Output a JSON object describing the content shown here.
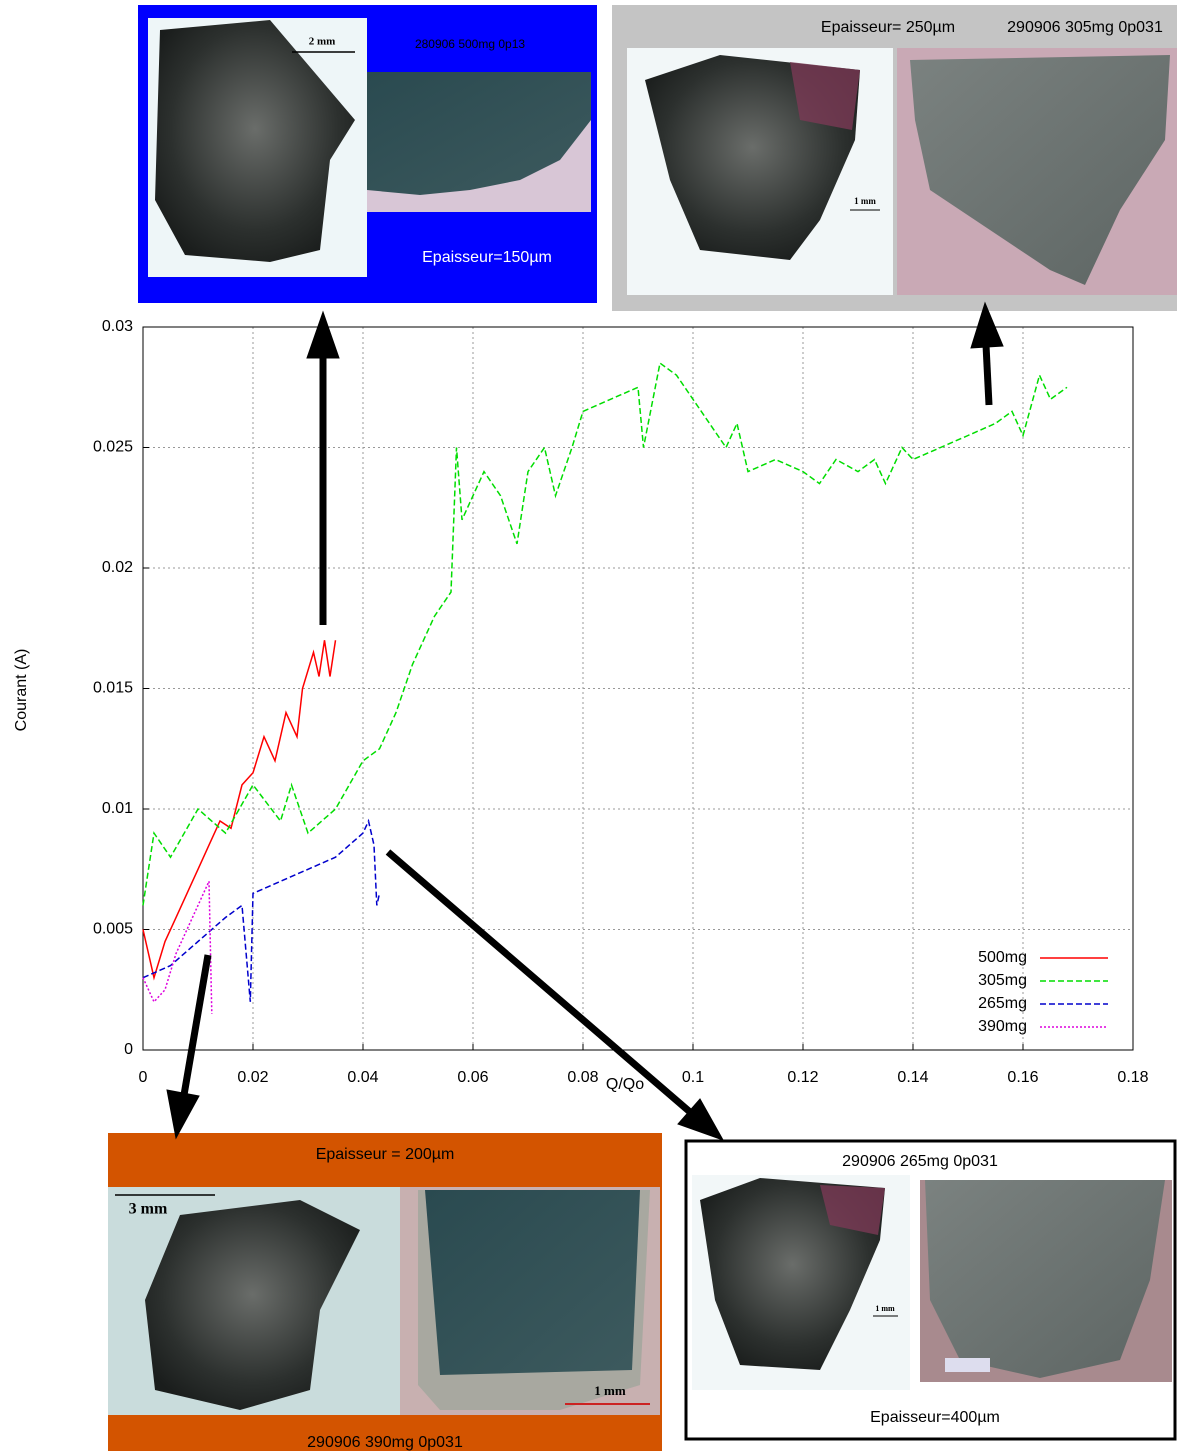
{
  "chart_data": {
    "type": "line",
    "x_label": "Q/Qo",
    "y_label": "Courant (A)",
    "xlim": [
      0,
      0.18
    ],
    "xticks": [
      0,
      0.02,
      0.04,
      0.06,
      0.08,
      0.1,
      0.12,
      0.14,
      0.16,
      0.18
    ],
    "ylim": [
      0,
      0.03
    ],
    "yticks": [
      0,
      0.005,
      0.01,
      0.015,
      0.02,
      0.025,
      0.03
    ],
    "grid": true,
    "legend": "lower right",
    "series": [
      {
        "name": "500mg",
        "color": "#ff0000",
        "style": "solid",
        "x": [
          0,
          0.002,
          0.004,
          0.006,
          0.008,
          0.01,
          0.012,
          0.014,
          0.016,
          0.018,
          0.02,
          0.022,
          0.024,
          0.026,
          0.028,
          0.029,
          0.031,
          0.032,
          0.033,
          0.034,
          0.035
        ],
        "values": [
          0.005,
          0.003,
          0.0045,
          0.0055,
          0.0065,
          0.0075,
          0.0085,
          0.0095,
          0.0092,
          0.011,
          0.0115,
          0.013,
          0.012,
          0.014,
          0.013,
          0.015,
          0.0165,
          0.0155,
          0.017,
          0.0155,
          0.017
        ]
      },
      {
        "name": "305mg",
        "color": "#00dd00",
        "style": "dashed",
        "x": [
          0,
          0.002,
          0.005,
          0.01,
          0.015,
          0.02,
          0.025,
          0.027,
          0.03,
          0.035,
          0.04,
          0.043,
          0.046,
          0.049,
          0.053,
          0.056,
          0.057,
          0.058,
          0.06,
          0.062,
          0.065,
          0.068,
          0.07,
          0.073,
          0.075,
          0.078,
          0.08,
          0.085,
          0.09,
          0.091,
          0.094,
          0.097,
          0.1,
          0.103,
          0.106,
          0.108,
          0.11,
          0.115,
          0.12,
          0.123,
          0.126,
          0.13,
          0.133,
          0.135,
          0.138,
          0.14,
          0.145,
          0.15,
          0.155,
          0.158,
          0.16,
          0.163,
          0.165,
          0.168
        ],
        "values": [
          0.006,
          0.009,
          0.008,
          0.01,
          0.009,
          0.011,
          0.0095,
          0.011,
          0.009,
          0.01,
          0.012,
          0.0125,
          0.014,
          0.016,
          0.018,
          0.019,
          0.025,
          0.022,
          0.023,
          0.024,
          0.023,
          0.021,
          0.024,
          0.025,
          0.023,
          0.025,
          0.0265,
          0.027,
          0.0275,
          0.025,
          0.0285,
          0.028,
          0.027,
          0.026,
          0.025,
          0.026,
          0.024,
          0.0245,
          0.024,
          0.0235,
          0.0245,
          0.024,
          0.0245,
          0.0235,
          0.025,
          0.0245,
          0.025,
          0.0255,
          0.026,
          0.0265,
          0.0255,
          0.028,
          0.027,
          0.0275
        ]
      },
      {
        "name": "265mg",
        "color": "#0000cc",
        "style": "dashed",
        "x": [
          0,
          0.005,
          0.01,
          0.015,
          0.018,
          0.0195,
          0.02,
          0.025,
          0.03,
          0.035,
          0.04,
          0.041,
          0.042,
          0.0425,
          0.043
        ],
        "values": [
          0.003,
          0.0035,
          0.0045,
          0.0055,
          0.006,
          0.002,
          0.0065,
          0.007,
          0.0075,
          0.008,
          0.009,
          0.0095,
          0.0085,
          0.006,
          0.0065
        ]
      },
      {
        "name": "390mg",
        "color": "#dd00dd",
        "style": "dotted",
        "x": [
          0,
          0.002,
          0.004,
          0.006,
          0.008,
          0.01,
          0.012,
          0.0125
        ],
        "values": [
          0.003,
          0.002,
          0.0025,
          0.004,
          0.005,
          0.006,
          0.007,
          0.0015
        ]
      }
    ]
  },
  "insets": [
    {
      "texts": [
        "2 mm",
        "280906 500mg 0p13",
        "Epaisseur=150µm"
      ]
    },
    {
      "texts": [
        "Epaisseur= 250µm",
        "290906 305mg 0p031",
        "1 mm"
      ]
    },
    {
      "texts": [
        "Epaisseur = 200µm",
        "3 mm",
        "1 mm",
        "290906 390mg 0p031"
      ]
    },
    {
      "texts": [
        "290906 265mg 0p031",
        "1 mm",
        "Epaisseur=400µm"
      ]
    }
  ]
}
